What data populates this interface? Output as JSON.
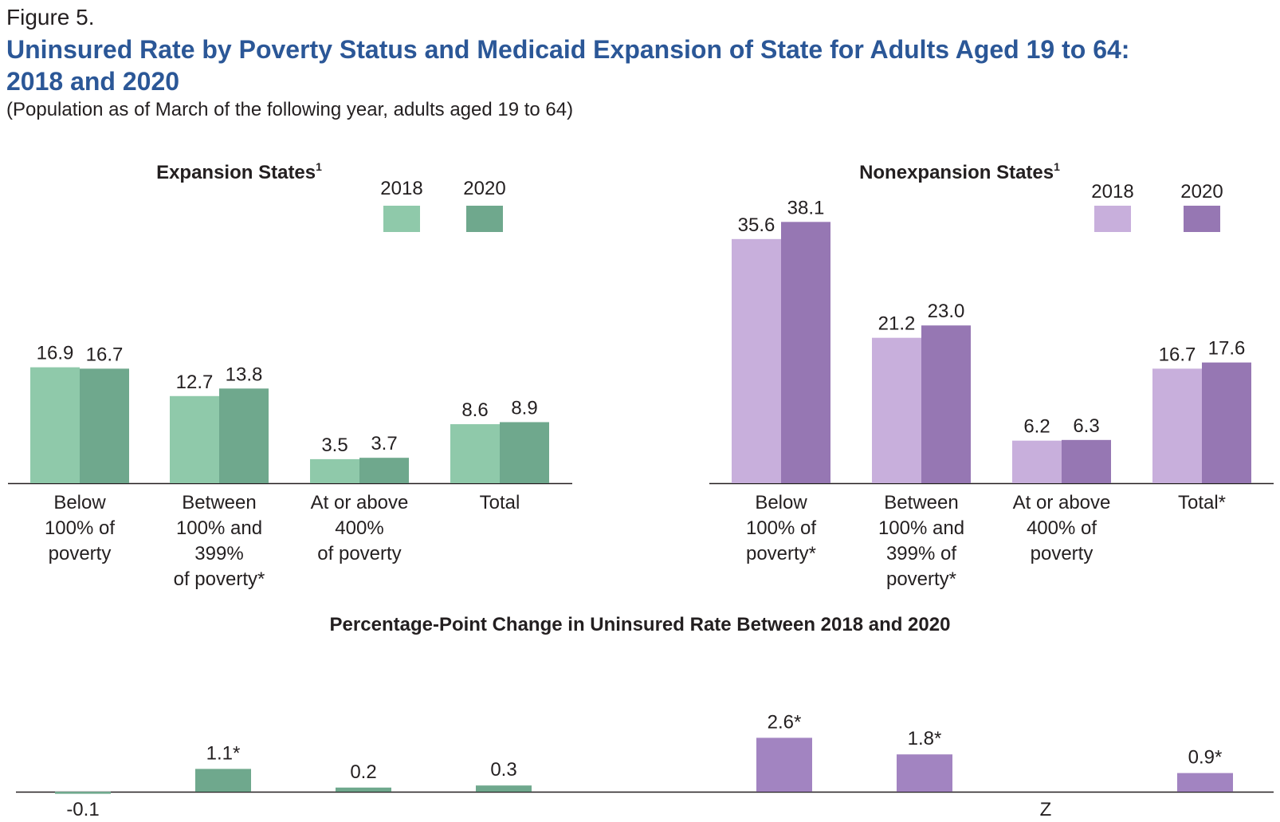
{
  "figure_label": "Figure 5.",
  "title_line1": "Uninsured Rate by Poverty Status and Medicaid Expansion of State for Adults Aged 19 to 64:",
  "title_line2": "2018 and 2020",
  "subtitle": "(Population as of March of the following year, adults aged 19 to 64)",
  "colors": {
    "expansion_2018": "#8fc9aa",
    "expansion_2020": "#6fa88d",
    "nonexpansion_2018": "#c8afdc",
    "nonexpansion_2020": "#9677b3",
    "change_expansion": "#6fa88d",
    "change_nonexpansion": "#a284c1",
    "axis": "#231f20"
  },
  "chart_data": [
    {
      "type": "bar",
      "title": "Expansion States",
      "title_superscript": "1",
      "legend_position": "top-right",
      "categories": [
        [
          "Below",
          "100% of",
          "poverty"
        ],
        [
          "Between",
          "100% and",
          "399%",
          "of poverty*"
        ],
        [
          "At or above",
          "400%",
          "of poverty"
        ],
        [
          "Total"
        ]
      ],
      "series": [
        {
          "name": "2018",
          "values": [
            16.9,
            12.7,
            3.5,
            8.6
          ],
          "labels": [
            "16.9",
            "12.7",
            "3.5",
            "8.6"
          ]
        },
        {
          "name": "2020",
          "values": [
            16.7,
            13.8,
            3.7,
            8.9
          ],
          "labels": [
            "16.7",
            "13.8",
            "3.7",
            "8.9"
          ]
        }
      ]
    },
    {
      "type": "bar",
      "title": "Nonexpansion States",
      "title_superscript": "1",
      "legend_position": "top-right",
      "categories": [
        [
          "Below",
          "100% of",
          "poverty*"
        ],
        [
          "Between",
          "100% and",
          "399% of",
          "poverty*"
        ],
        [
          "At or above",
          "400% of",
          "poverty"
        ],
        [
          "Total*"
        ]
      ],
      "series": [
        {
          "name": "2018",
          "values": [
            35.6,
            21.2,
            6.2,
            16.7
          ],
          "labels": [
            "35.6",
            "21.2",
            "6.2",
            "16.7"
          ]
        },
        {
          "name": "2020",
          "values": [
            38.1,
            23.0,
            6.3,
            17.6
          ],
          "labels": [
            "38.1",
            "23.0",
            "6.3",
            "17.6"
          ]
        }
      ]
    },
    {
      "type": "bar",
      "title": "Percentage-Point Change in Uninsured Rate Between 2018 and 2020",
      "groups": [
        {
          "name": "Expansion States",
          "values": [
            -0.1,
            1.1,
            0.2,
            0.3
          ],
          "labels": [
            "-0.1",
            "1.1*",
            "0.2",
            "0.3"
          ]
        },
        {
          "name": "Nonexpansion States",
          "values": [
            2.6,
            1.8,
            0,
            0.9
          ],
          "labels": [
            "2.6*",
            "1.8*",
            "Z",
            "0.9*"
          ]
        }
      ]
    }
  ]
}
